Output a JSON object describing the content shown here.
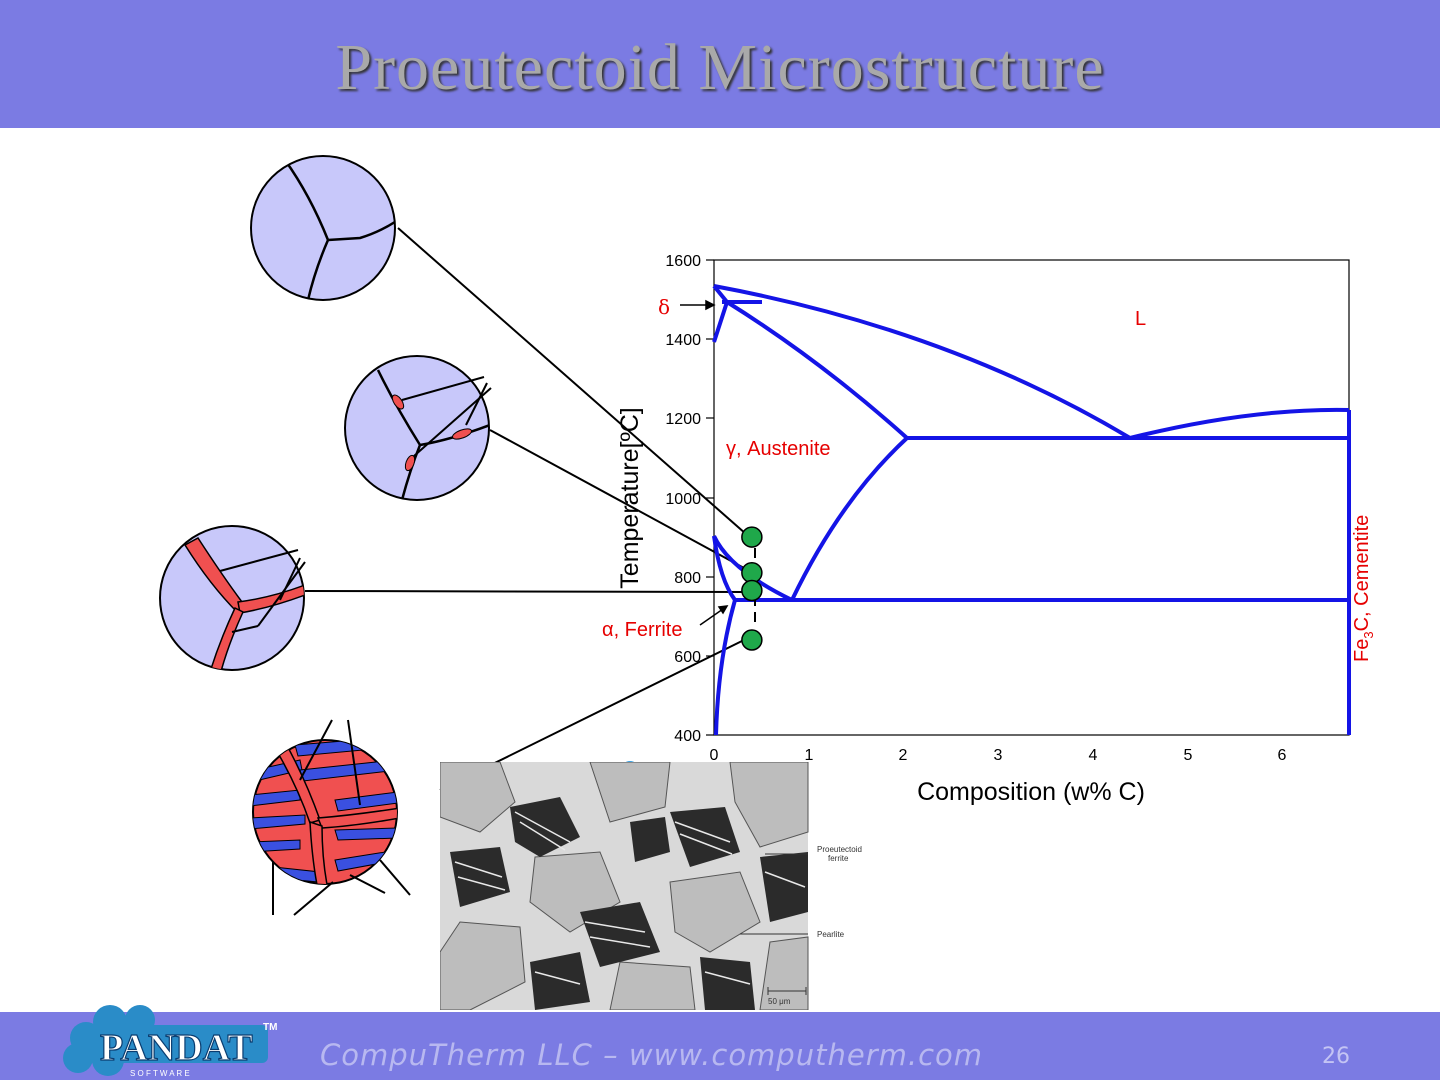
{
  "slide": {
    "title": "Proeutectoid Microstructure",
    "footer": "CompuTherm LLC – www.computherm.com",
    "page_number": "26",
    "logo": {
      "text": "PANDAT",
      "sub": "S O F T W A R E",
      "tm": "TM"
    }
  },
  "phase_diagram": {
    "ylabel": "Temperature[ºC]",
    "xlabel": "Composition (w% C)",
    "y_ticks": [
      "1600",
      "1400",
      "1200",
      "1000",
      "800",
      "600",
      "400"
    ],
    "x_ticks": [
      "0",
      "1",
      "2",
      "3",
      "4",
      "5",
      "6"
    ],
    "labels": {
      "liquid": "L",
      "delta": "δ",
      "austenite": "γ, Austenite",
      "ferrite": "α, Ferrite",
      "cementite_pre": "Fe",
      "cementite_sub": "3",
      "cementite_post": "C, Cementite"
    },
    "states": [
      {
        "composition": 0.4,
        "temperature": 900
      },
      {
        "composition": 0.4,
        "temperature": 810
      },
      {
        "composition": 0.4,
        "temperature": 765
      },
      {
        "composition": 0.4,
        "temperature": 640
      }
    ]
  },
  "micrograph": {
    "callout_1": "Proeutectoid",
    "callout_1b": "ferrite",
    "callout_2": "Pearlite",
    "scale": "50 μm"
  },
  "colors": {
    "header": "#7b7be3",
    "boundary": "#1414e6",
    "phase_label": "#e60000",
    "grain": "#c8c8fa",
    "ferrite_phase": "#f05050",
    "cementite_lamella": "#3a50e0",
    "state_point": "#1fa84a"
  }
}
